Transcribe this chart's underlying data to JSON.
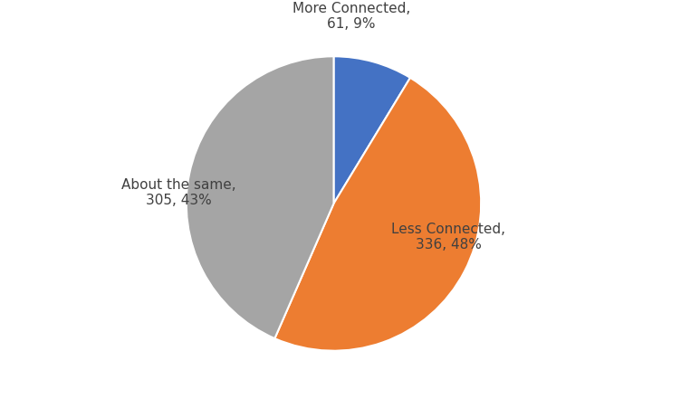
{
  "slices": [
    {
      "label": "More Connected,\n61, 9%",
      "value": 61,
      "color": "#4472C4"
    },
    {
      "label": "Less Connected,\n336, 48%",
      "value": 336,
      "color": "#ED7D31"
    },
    {
      "label": "About the same,\n305, 43%",
      "value": 305,
      "color": "#A5A5A5"
    }
  ],
  "background_color": "#ffffff",
  "label_fontsize": 11,
  "startangle": 90,
  "figsize": [
    7.52,
    4.52
  ],
  "dpi": 100
}
